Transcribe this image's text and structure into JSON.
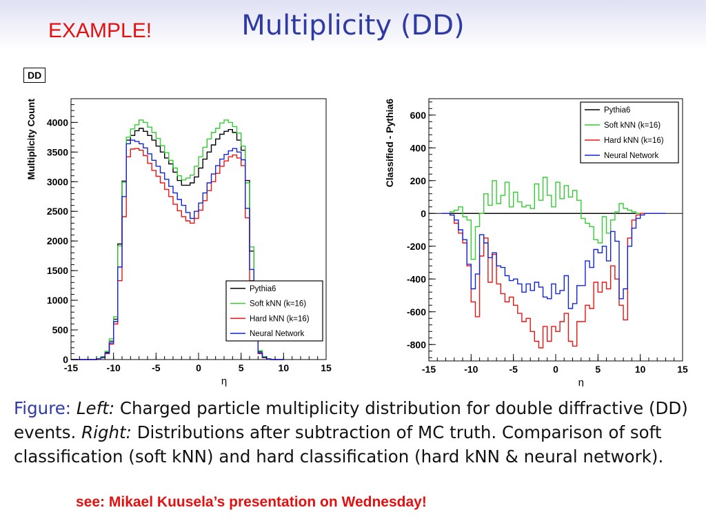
{
  "slide": {
    "example_label": "EXAMPLE!",
    "title": "Multiplicity (DD)",
    "dd_box": "DD",
    "caption": {
      "figure_label": "Figure:",
      "left_label": "Left:",
      "left_text": " Charged particle multiplicity distribution for double diffractive (DD) events. ",
      "right_label": "Right:",
      "right_text": " Distributions after subtraction of MC truth. Comparison of soft classification (soft kNN) and hard classification (hard kNN & neural network)."
    },
    "footnote": "see: Mikael Kuusela’s presentation on Wednesday!"
  },
  "colors": {
    "pythia": "#000000",
    "soft": "#33cc33",
    "hard": "#ee1111",
    "nn": "#1122dd",
    "accent_red": "#e41010",
    "title_blue": "#2f3aa3"
  },
  "chart_data": [
    {
      "type": "line",
      "step": true,
      "xlabel": "η",
      "ylabel": "Multiplicity Count",
      "xlim": [
        -15,
        15
      ],
      "ylim": [
        0,
        4400
      ],
      "xticks": [
        -15,
        -10,
        -5,
        0,
        5,
        10,
        15
      ],
      "yticks": [
        0,
        500,
        1000,
        1500,
        2000,
        2500,
        3000,
        3500,
        4000
      ],
      "grid": false,
      "legend": "bottom-right",
      "bin_edges_start": -15,
      "bin_width": 0.5,
      "series": [
        {
          "name": "Pythia6",
          "key": "pythia",
          "values": [
            0,
            0,
            0,
            0,
            0,
            0,
            10,
            40,
            120,
            310,
            680,
            1950,
            3010,
            3700,
            3780,
            3860,
            3900,
            3850,
            3780,
            3700,
            3600,
            3500,
            3400,
            3300,
            3160,
            3020,
            2940,
            2940,
            2980,
            3080,
            3230,
            3380,
            3500,
            3620,
            3720,
            3800,
            3850,
            3880,
            3830,
            3700,
            3530,
            3020,
            1830,
            820,
            130,
            40,
            10,
            0,
            0,
            0
          ]
        },
        {
          "name": "Soft kNN (k=16)",
          "key": "soft",
          "values": [
            0,
            0,
            0,
            0,
            0,
            0,
            15,
            50,
            140,
            350,
            720,
            1920,
            2990,
            3750,
            3890,
            3960,
            4040,
            4000,
            3920,
            3830,
            3730,
            3610,
            3490,
            3360,
            3230,
            3100,
            3030,
            3060,
            3110,
            3260,
            3420,
            3580,
            3720,
            3830,
            3900,
            3990,
            4040,
            4000,
            3930,
            3820,
            3600,
            2980,
            1900,
            870,
            150,
            50,
            15,
            0,
            0,
            0
          ]
        },
        {
          "name": "Hard kNN (k=16)",
          "key": "hard",
          "values": [
            0,
            0,
            0,
            0,
            0,
            0,
            8,
            30,
            100,
            260,
            600,
            1330,
            2410,
            3420,
            3550,
            3560,
            3530,
            3440,
            3310,
            3190,
            3090,
            2980,
            2870,
            2750,
            2620,
            2510,
            2410,
            2340,
            2300,
            2380,
            2520,
            2680,
            2850,
            3000,
            3140,
            3260,
            3350,
            3420,
            3450,
            3400,
            3270,
            2390,
            1330,
            640,
            100,
            30,
            8,
            0,
            0,
            0
          ]
        },
        {
          "name": "Neural Network",
          "key": "nn",
          "values": [
            0,
            0,
            0,
            0,
            0,
            0,
            10,
            35,
            110,
            280,
            640,
            1560,
            2750,
            3640,
            3700,
            3680,
            3640,
            3570,
            3470,
            3360,
            3260,
            3150,
            3040,
            2920,
            2810,
            2700,
            2600,
            2480,
            2380,
            2500,
            2640,
            2810,
            2980,
            3130,
            3270,
            3380,
            3460,
            3520,
            3560,
            3500,
            3370,
            2550,
            1520,
            720,
            110,
            35,
            10,
            0,
            0,
            0
          ]
        }
      ]
    },
    {
      "type": "line",
      "step": true,
      "xlabel": "η",
      "ylabel": "Classified - Pythia6",
      "xlim": [
        -15,
        15
      ],
      "ylim": [
        -900,
        700
      ],
      "xticks": [
        -15,
        -10,
        -5,
        0,
        5,
        10,
        15
      ],
      "yticks": [
        -800,
        -600,
        -400,
        -200,
        0,
        200,
        400,
        600
      ],
      "grid": false,
      "legend": "top-right",
      "bin_edges_start": -13.5,
      "bin_width": 0.5,
      "series": [
        {
          "name": "Pythia6",
          "key": "pythia",
          "values": [
            0,
            0,
            0,
            0,
            0,
            0,
            0,
            0,
            0,
            0,
            0,
            0,
            0,
            0,
            0,
            0,
            0,
            0,
            0,
            0,
            0,
            0,
            0,
            0,
            0,
            0,
            0,
            0,
            0,
            0,
            0,
            0,
            0,
            0,
            0,
            0,
            0,
            0,
            0,
            0,
            0,
            0,
            0,
            0,
            0,
            0,
            0,
            0,
            0,
            0,
            0,
            0,
            0
          ]
        },
        {
          "name": "Soft kNN (k=16)",
          "key": "soft",
          "values": [
            0,
            0,
            10,
            20,
            40,
            -20,
            -40,
            -280,
            -80,
            0,
            120,
            50,
            200,
            60,
            110,
            190,
            40,
            130,
            70,
            40,
            50,
            30,
            180,
            80,
            220,
            110,
            40,
            190,
            90,
            170,
            100,
            140,
            80,
            -30,
            -60,
            -80,
            -160,
            -180,
            -20,
            -120,
            -40,
            10,
            60,
            30,
            20,
            10,
            0,
            0,
            0,
            0,
            0,
            0,
            0
          ]
        },
        {
          "name": "Hard kNN (k=16)",
          "key": "hard",
          "values": [
            0,
            0,
            -10,
            -60,
            -120,
            -180,
            -320,
            -540,
            -630,
            -260,
            -150,
            -420,
            -250,
            -430,
            -490,
            -540,
            -510,
            -560,
            -610,
            -660,
            -640,
            -720,
            -780,
            -820,
            -690,
            -780,
            -690,
            -720,
            -660,
            -610,
            -780,
            -810,
            -660,
            -660,
            -560,
            -580,
            -420,
            -480,
            -420,
            -460,
            -320,
            -400,
            -560,
            -650,
            -150,
            -40,
            -10,
            0,
            0,
            0,
            0,
            0,
            0
          ]
        },
        {
          "name": "Neural Network",
          "key": "nn",
          "values": [
            0,
            0,
            -10,
            -40,
            -100,
            -160,
            -310,
            -460,
            -370,
            -130,
            -180,
            -270,
            -240,
            -320,
            -330,
            -380,
            -410,
            -400,
            -430,
            -480,
            -430,
            -470,
            -420,
            -450,
            -510,
            -520,
            -430,
            -490,
            -470,
            -380,
            -580,
            -550,
            -440,
            -440,
            -290,
            -330,
            -220,
            -240,
            -200,
            -290,
            -110,
            -170,
            -520,
            -460,
            -200,
            -90,
            -30,
            -10,
            0,
            0,
            0,
            0,
            0
          ]
        }
      ]
    }
  ]
}
